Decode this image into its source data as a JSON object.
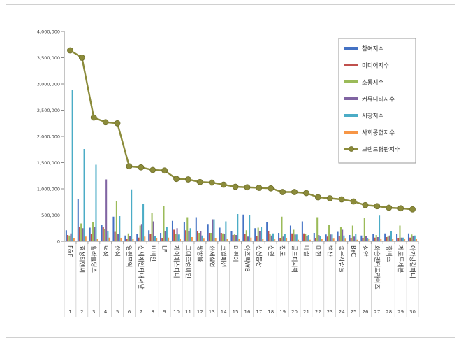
{
  "chart_data": {
    "type": "bar",
    "title": "",
    "xlabel": "",
    "ylabel": "",
    "ylim": [
      0,
      4000000
    ],
    "y_ticks": [
      0,
      500000,
      1000000,
      1500000,
      2000000,
      2500000,
      3000000,
      3500000,
      4000000
    ],
    "y_tick_labels": [
      "0",
      "500,000",
      "1,000,000",
      "1,500,000",
      "2,000,000",
      "2,500,000",
      "3,000,000",
      "3,500,000",
      "4,000,000"
    ],
    "grid": false,
    "legend_position": "top-right",
    "categories": [
      "F&F",
      "효성티앤씨",
      "휠라홀딩스",
      "덕성",
      "한섬",
      "영원무역",
      "신세계인터내셔날",
      "비비안",
      "LF",
      "제이에스티나",
      "코데즈컴바인",
      "쌍방울",
      "한세실업",
      "코웰패션",
      "미원이",
      "아즈텍WB",
      "신성통상",
      "신원",
      "진도",
      "골드퍼시픽",
      "베럴",
      "대현",
      "백산",
      "좋은사람들",
      "BYC",
      "성안",
      "화승엔터프라이즈",
      "휴비스",
      "제로투세븐",
      "아가방컴퍼니"
    ],
    "ranks": [
      "1",
      "2",
      "3",
      "4",
      "5",
      "6",
      "7",
      "8",
      "9",
      "10",
      "11",
      "12",
      "13",
      "14",
      "15",
      "16",
      "17",
      "18",
      "19",
      "20",
      "21",
      "22",
      "23",
      "24",
      "25",
      "26",
      "27",
      "28",
      "29",
      "30"
    ],
    "series": [
      {
        "name": "참여지수",
        "color": "#4472c4",
        "values": [
          210000,
          800000,
          260000,
          310000,
          470000,
          110000,
          140000,
          210000,
          160000,
          390000,
          360000,
          460000,
          330000,
          260000,
          190000,
          510000,
          250000,
          370000,
          160000,
          300000,
          380000,
          160000,
          130000,
          180000,
          120000,
          110000,
          140000,
          150000,
          140000,
          150000
        ]
      },
      {
        "name": "미디어지수",
        "color": "#c0504d",
        "values": [
          120000,
          270000,
          140000,
          270000,
          180000,
          40000,
          70000,
          140000,
          60000,
          220000,
          210000,
          200000,
          160000,
          160000,
          120000,
          140000,
          100000,
          190000,
          60000,
          150000,
          150000,
          60000,
          90000,
          100000,
          60000,
          60000,
          70000,
          80000,
          60000,
          70000
        ]
      },
      {
        "name": "소통지수",
        "color": "#9bbb59",
        "values": [
          110000,
          340000,
          360000,
          230000,
          770000,
          150000,
          300000,
          540000,
          670000,
          140000,
          460000,
          160000,
          160000,
          150000,
          130000,
          210000,
          260000,
          140000,
          470000,
          220000,
          140000,
          460000,
          320000,
          280000,
          300000,
          440000,
          120000,
          90000,
          300000,
          130000
        ]
      },
      {
        "name": "커뮤니티지수",
        "color": "#8064a2",
        "values": [
          150000,
          250000,
          270000,
          1180000,
          140000,
          100000,
          330000,
          380000,
          200000,
          250000,
          190000,
          190000,
          420000,
          140000,
          120000,
          90000,
          190000,
          110000,
          90000,
          130000,
          100000,
          120000,
          130000,
          220000,
          90000,
          100000,
          80000,
          110000,
          70000,
          100000
        ]
      },
      {
        "name": "시장지수",
        "color": "#4bacc6",
        "values": [
          2890000,
          1760000,
          1460000,
          190000,
          480000,
          990000,
          720000,
          100000,
          280000,
          130000,
          250000,
          110000,
          420000,
          380000,
          520000,
          500000,
          280000,
          150000,
          140000,
          130000,
          120000,
          100000,
          130000,
          110000,
          140000,
          60000,
          490000,
          190000,
          70000,
          110000
        ]
      },
      {
        "name": "사회공헌지수",
        "color": "#f79646",
        "values": [
          60000,
          90000,
          40000,
          70000,
          60000,
          40000,
          90000,
          60000,
          70000,
          40000,
          80000,
          50000,
          60000,
          40000,
          40000,
          70000,
          40000,
          40000,
          60000,
          30000,
          30000,
          40000,
          50000,
          50000,
          30000,
          40000,
          40000,
          40000,
          40000,
          40000
        ]
      },
      {
        "name": "브랜드평판지수",
        "color": "#8b8b3a",
        "type": "line",
        "values": [
          3640000,
          3500000,
          2360000,
          2270000,
          2250000,
          1430000,
          1410000,
          1360000,
          1350000,
          1190000,
          1180000,
          1130000,
          1120000,
          1080000,
          1040000,
          1030000,
          1020000,
          1010000,
          940000,
          940000,
          920000,
          840000,
          820000,
          800000,
          760000,
          690000,
          670000,
          640000,
          630000,
          610000
        ]
      }
    ]
  }
}
